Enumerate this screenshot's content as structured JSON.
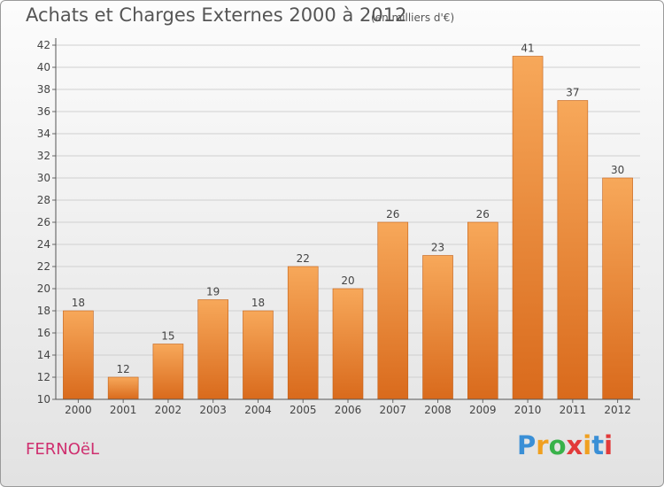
{
  "title": "Achats et Charges Externes 2000 à 2012",
  "subtitle": "(en milliers d'€)",
  "place": "FERNOëL",
  "logo": {
    "letters": [
      "P",
      "r",
      "o",
      "x",
      "i",
      "t",
      "i"
    ],
    "colors": [
      "#3a8fd6",
      "#f0a020",
      "#39b24a",
      "#e23a3a",
      "#f0a020",
      "#3a8fd6",
      "#e23a3a"
    ]
  },
  "colors": {
    "bar_top": "#f7a85a",
    "bar_bottom": "#d96a1c",
    "bar_stroke": "#c2611a",
    "grid": "#d0d0d0",
    "text": "#444444"
  },
  "chart_data": {
    "type": "bar",
    "categories": [
      "2000",
      "2001",
      "2002",
      "2003",
      "2004",
      "2005",
      "2006",
      "2007",
      "2008",
      "2009",
      "2010",
      "2011",
      "2012"
    ],
    "values": [
      18,
      12,
      15,
      19,
      18,
      22,
      20,
      26,
      23,
      26,
      41,
      37,
      30
    ],
    "data_labels": [
      "18",
      "12",
      "15",
      "19",
      "18",
      "22",
      "20",
      "26",
      "23",
      "26",
      "41",
      "37",
      "30"
    ],
    "yticks": [
      10,
      12,
      14,
      16,
      18,
      20,
      22,
      24,
      26,
      28,
      30,
      32,
      34,
      36,
      38,
      40,
      42
    ],
    "ytick_labels": [
      "10",
      "12",
      "14",
      "16",
      "18",
      "20",
      "22",
      "24",
      "26",
      "28",
      "30",
      "32",
      "34",
      "36",
      "38",
      "40",
      "42"
    ],
    "ylim": [
      10,
      42
    ],
    "grid": true,
    "legend": "none"
  }
}
